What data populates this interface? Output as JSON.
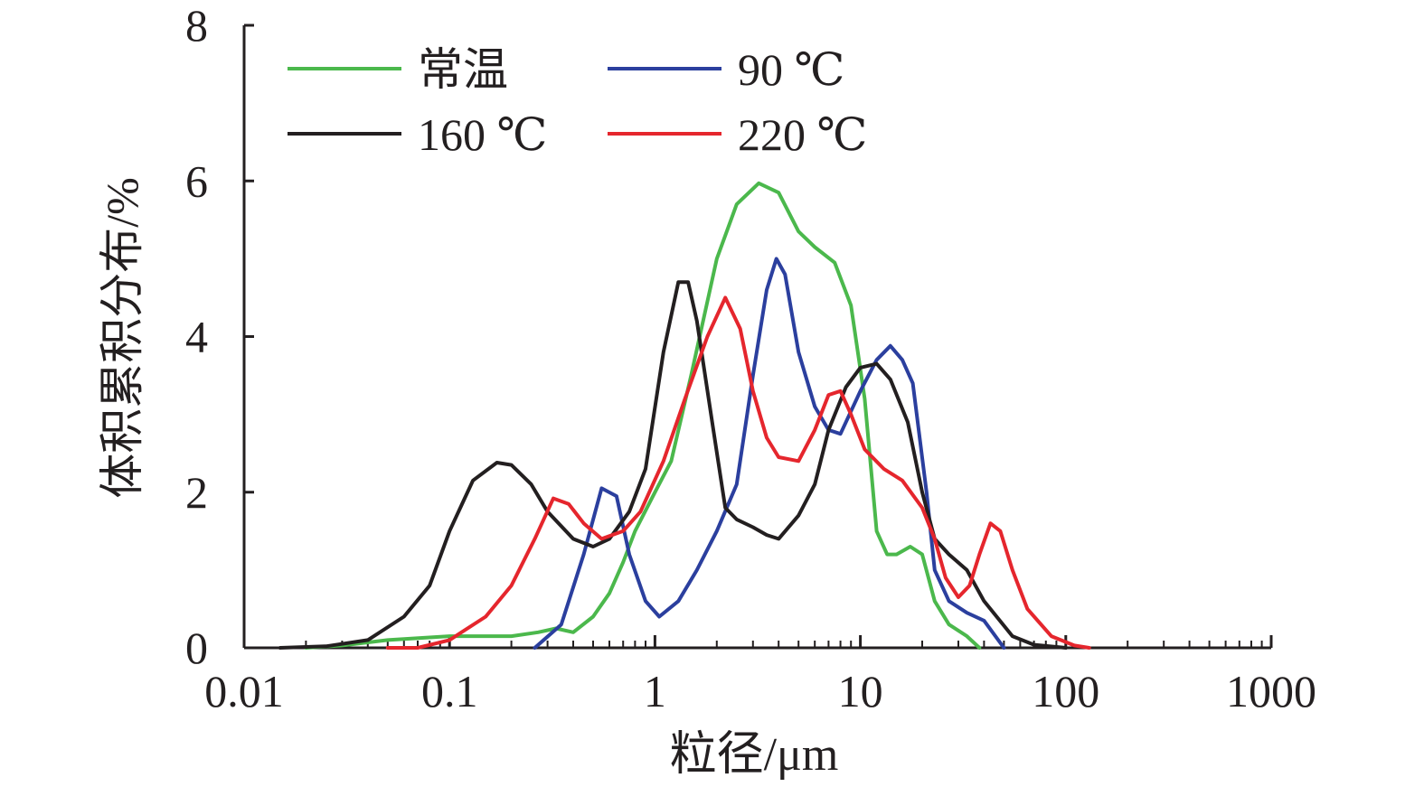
{
  "chart_data": {
    "type": "line",
    "xlabel": "粒径/μm",
    "ylabel": "体积累积分布/%",
    "x_scale": "log",
    "xlim": [
      0.01,
      1000
    ],
    "ylim": [
      0,
      8
    ],
    "x_ticks": [
      "0.01",
      "0.1",
      "1",
      "10",
      "100",
      "1000"
    ],
    "y_ticks": [
      "0",
      "2",
      "4",
      "6",
      "8"
    ],
    "grid": false,
    "legend_position": "top-left",
    "series": [
      {
        "name": "常温",
        "color": "#4bb84c",
        "points": [
          [
            0.02,
            0.0
          ],
          [
            0.03,
            0.03
          ],
          [
            0.05,
            0.1
          ],
          [
            0.1,
            0.15
          ],
          [
            0.15,
            0.15
          ],
          [
            0.2,
            0.15
          ],
          [
            0.27,
            0.2
          ],
          [
            0.33,
            0.25
          ],
          [
            0.4,
            0.2
          ],
          [
            0.5,
            0.4
          ],
          [
            0.6,
            0.7
          ],
          [
            0.7,
            1.1
          ],
          [
            0.8,
            1.5
          ],
          [
            1.0,
            2.0
          ],
          [
            1.2,
            2.4
          ],
          [
            1.5,
            3.5
          ],
          [
            2.0,
            5.0
          ],
          [
            2.5,
            5.7
          ],
          [
            3.2,
            5.97
          ],
          [
            4.0,
            5.85
          ],
          [
            5.0,
            5.35
          ],
          [
            6.0,
            5.15
          ],
          [
            7.5,
            4.95
          ],
          [
            9.0,
            4.4
          ],
          [
            10.5,
            3.2
          ],
          [
            12.0,
            1.5
          ],
          [
            13.5,
            1.2
          ],
          [
            15.0,
            1.2
          ],
          [
            17.5,
            1.3
          ],
          [
            20.0,
            1.2
          ],
          [
            23.0,
            0.6
          ],
          [
            27.0,
            0.3
          ],
          [
            33.0,
            0.15
          ],
          [
            38.0,
            0.0
          ]
        ]
      },
      {
        "name": "90 ℃",
        "color": "#2b3f9e",
        "points": [
          [
            0.26,
            0.0
          ],
          [
            0.35,
            0.3
          ],
          [
            0.45,
            1.2
          ],
          [
            0.55,
            2.05
          ],
          [
            0.65,
            1.95
          ],
          [
            0.75,
            1.2
          ],
          [
            0.9,
            0.6
          ],
          [
            1.05,
            0.4
          ],
          [
            1.3,
            0.6
          ],
          [
            1.6,
            1.0
          ],
          [
            2.0,
            1.5
          ],
          [
            2.5,
            2.1
          ],
          [
            3.0,
            3.5
          ],
          [
            3.5,
            4.6
          ],
          [
            3.9,
            5.0
          ],
          [
            4.3,
            4.8
          ],
          [
            5.0,
            3.8
          ],
          [
            6.0,
            3.1
          ],
          [
            7.0,
            2.8
          ],
          [
            8.0,
            2.75
          ],
          [
            10.0,
            3.3
          ],
          [
            12.0,
            3.7
          ],
          [
            14.0,
            3.88
          ],
          [
            16.0,
            3.7
          ],
          [
            18.0,
            3.4
          ],
          [
            21.0,
            2.0
          ],
          [
            23.0,
            1.0
          ],
          [
            27.0,
            0.6
          ],
          [
            33.0,
            0.45
          ],
          [
            40.0,
            0.35
          ],
          [
            50.0,
            0.0
          ]
        ]
      },
      {
        "name": "160 ℃",
        "color": "#231f20",
        "points": [
          [
            0.015,
            0.0
          ],
          [
            0.025,
            0.02
          ],
          [
            0.04,
            0.1
          ],
          [
            0.06,
            0.4
          ],
          [
            0.08,
            0.8
          ],
          [
            0.1,
            1.5
          ],
          [
            0.13,
            2.15
          ],
          [
            0.17,
            2.38
          ],
          [
            0.2,
            2.35
          ],
          [
            0.25,
            2.1
          ],
          [
            0.3,
            1.75
          ],
          [
            0.4,
            1.4
          ],
          [
            0.5,
            1.3
          ],
          [
            0.6,
            1.4
          ],
          [
            0.75,
            1.75
          ],
          [
            0.9,
            2.3
          ],
          [
            1.1,
            3.8
          ],
          [
            1.3,
            4.7
          ],
          [
            1.45,
            4.7
          ],
          [
            1.6,
            4.2
          ],
          [
            1.9,
            2.9
          ],
          [
            2.2,
            1.8
          ],
          [
            2.5,
            1.65
          ],
          [
            3.0,
            1.55
          ],
          [
            3.5,
            1.45
          ],
          [
            4.0,
            1.4
          ],
          [
            5.0,
            1.7
          ],
          [
            6.0,
            2.1
          ],
          [
            7.0,
            2.8
          ],
          [
            8.5,
            3.35
          ],
          [
            10.0,
            3.6
          ],
          [
            12.0,
            3.65
          ],
          [
            14.0,
            3.45
          ],
          [
            17.0,
            2.9
          ],
          [
            20.0,
            2.0
          ],
          [
            23.0,
            1.4
          ],
          [
            27.0,
            1.2
          ],
          [
            33.0,
            1.0
          ],
          [
            40.0,
            0.6
          ],
          [
            55.0,
            0.15
          ],
          [
            70.0,
            0.04
          ],
          [
            100.0,
            0.0
          ]
        ]
      },
      {
        "name": "220 ℃",
        "color": "#e5262d",
        "points": [
          [
            0.05,
            0.0
          ],
          [
            0.07,
            0.0
          ],
          [
            0.1,
            0.1
          ],
          [
            0.15,
            0.4
          ],
          [
            0.2,
            0.8
          ],
          [
            0.26,
            1.4
          ],
          [
            0.32,
            1.92
          ],
          [
            0.38,
            1.85
          ],
          [
            0.45,
            1.6
          ],
          [
            0.55,
            1.4
          ],
          [
            0.7,
            1.5
          ],
          [
            0.85,
            1.75
          ],
          [
            1.1,
            2.4
          ],
          [
            1.4,
            3.2
          ],
          [
            1.8,
            4.0
          ],
          [
            2.2,
            4.5
          ],
          [
            2.6,
            4.1
          ],
          [
            3.0,
            3.3
          ],
          [
            3.5,
            2.7
          ],
          [
            4.0,
            2.45
          ],
          [
            5.0,
            2.4
          ],
          [
            6.0,
            2.8
          ],
          [
            7.0,
            3.25
          ],
          [
            8.0,
            3.3
          ],
          [
            9.0,
            3.0
          ],
          [
            10.5,
            2.55
          ],
          [
            13.0,
            2.3
          ],
          [
            16.0,
            2.15
          ],
          [
            20.0,
            1.8
          ],
          [
            23.0,
            1.4
          ],
          [
            26.0,
            0.9
          ],
          [
            30.0,
            0.65
          ],
          [
            34.0,
            0.8
          ],
          [
            38.0,
            1.2
          ],
          [
            43.0,
            1.6
          ],
          [
            48.0,
            1.5
          ],
          [
            55.0,
            1.0
          ],
          [
            65.0,
            0.5
          ],
          [
            85.0,
            0.15
          ],
          [
            110.0,
            0.03
          ],
          [
            130.0,
            0.0
          ]
        ]
      }
    ]
  }
}
